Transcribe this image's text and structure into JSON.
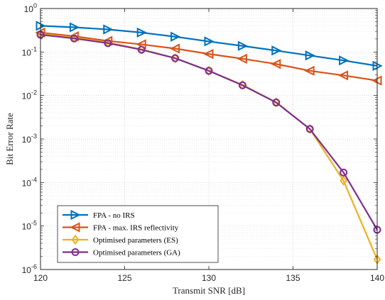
{
  "chart_data": {
    "type": "line",
    "title": "",
    "xlabel": "Transmit SNR [dB]",
    "ylabel": "Bit Error Rate",
    "xlim": [
      120,
      140
    ],
    "ylim": [
      1e-06,
      1
    ],
    "yscale": "log",
    "grid": true,
    "legend_position": "bottom-left",
    "x_ticks": [
      120,
      125,
      130,
      135,
      140
    ],
    "x_tick_labels": [
      "120",
      "125",
      "130",
      "135",
      "140"
    ],
    "y_ticks": [
      {
        "value": 1,
        "base": "10",
        "exp": "0"
      },
      {
        "value": 0.1,
        "base": "10",
        "exp": "-1"
      },
      {
        "value": 0.01,
        "base": "10",
        "exp": "-2"
      },
      {
        "value": 0.001,
        "base": "10",
        "exp": "-3"
      },
      {
        "value": 0.0001,
        "base": "10",
        "exp": "-4"
      },
      {
        "value": 1e-05,
        "base": "10",
        "exp": "-5"
      },
      {
        "value": 1e-06,
        "base": "10",
        "exp": "-6"
      }
    ],
    "x": [
      120,
      122,
      124,
      126,
      128,
      130,
      132,
      134,
      136,
      138,
      140
    ],
    "series": [
      {
        "name": "FPA - no IRS",
        "color": "#0072BD",
        "marker": "triangle-right",
        "values": [
          0.4,
          0.37,
          0.33,
          0.28,
          0.225,
          0.175,
          0.138,
          0.108,
          0.083,
          0.064,
          0.048
        ]
      },
      {
        "name": "FPA - max. IRS reflectivity",
        "color": "#D95319",
        "marker": "triangle-left",
        "values": [
          0.28,
          0.23,
          0.18,
          0.15,
          0.12,
          0.09,
          0.07,
          0.053,
          0.037,
          0.029,
          0.022
        ]
      },
      {
        "name": "Optimised parameters (ES)",
        "color": "#EDB120",
        "marker": "diamond",
        "values": [
          0.26,
          0.215,
          0.165,
          0.115,
          0.072,
          0.037,
          0.0175,
          0.007,
          0.0017,
          0.00011,
          1.7e-06
        ]
      },
      {
        "name": "Optimised parameters (GA)",
        "color": "#7E2F8E",
        "marker": "circle",
        "values": [
          0.25,
          0.205,
          0.16,
          0.113,
          0.072,
          0.037,
          0.0172,
          0.0069,
          0.0017,
          0.00017,
          8.2e-06
        ]
      }
    ]
  }
}
